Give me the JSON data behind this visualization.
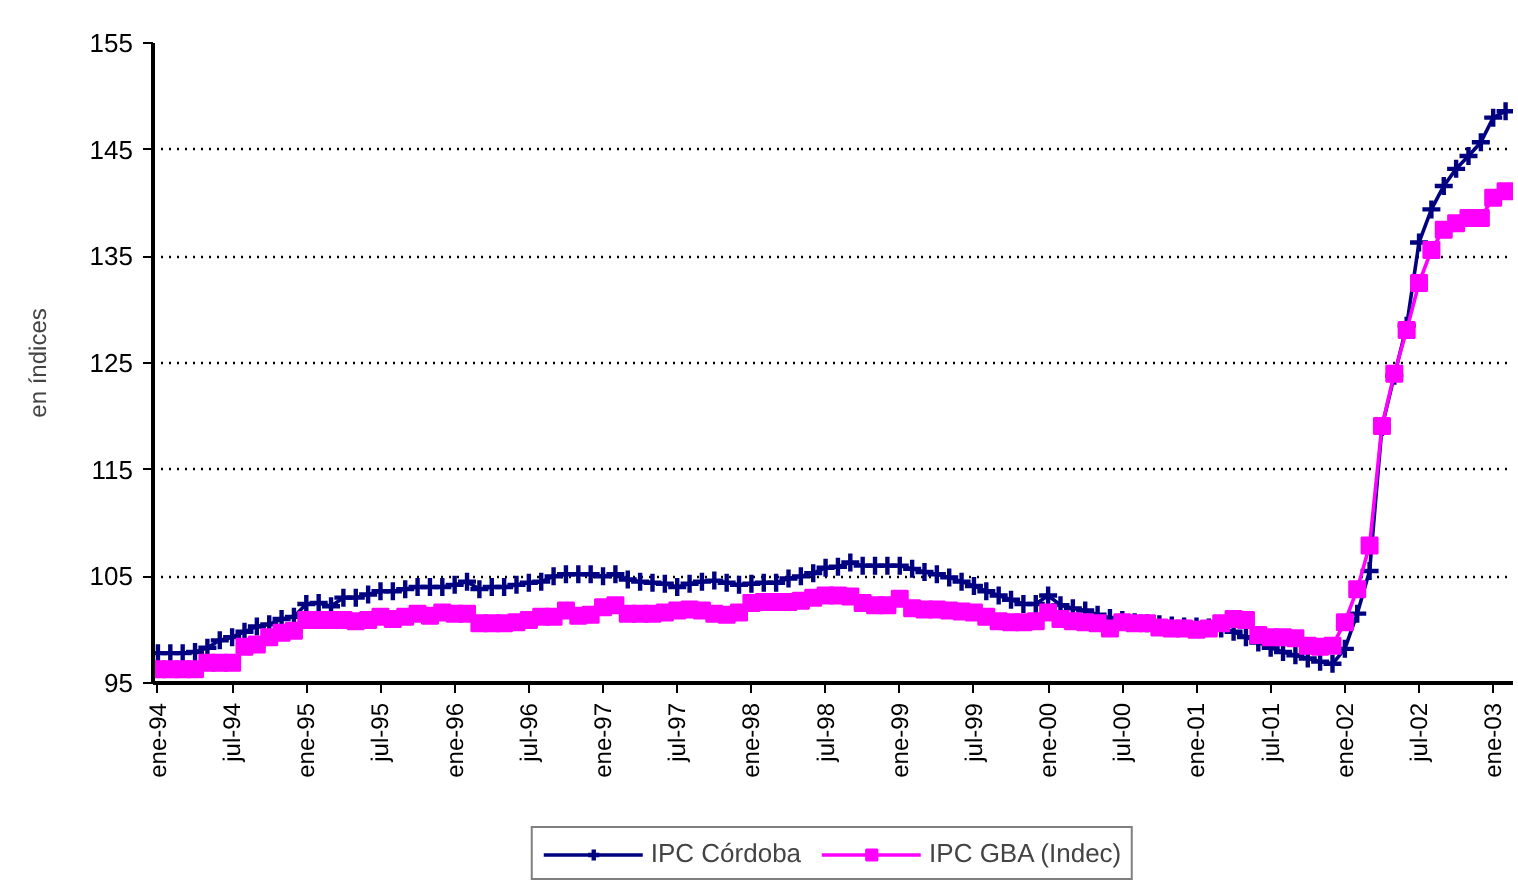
{
  "chart_data": {
    "type": "line",
    "ylabel": "en índices",
    "categories": [
      "ene-94",
      null,
      null,
      null,
      null,
      null,
      "jul-94",
      null,
      null,
      null,
      null,
      null,
      "ene-95",
      null,
      null,
      null,
      null,
      null,
      "jul-95",
      null,
      null,
      null,
      null,
      null,
      "ene-96",
      null,
      null,
      null,
      null,
      null,
      "jul-96",
      null,
      null,
      null,
      null,
      null,
      "ene-97",
      null,
      null,
      null,
      null,
      null,
      "jul-97",
      null,
      null,
      null,
      null,
      null,
      "ene-98",
      null,
      null,
      null,
      null,
      null,
      "jul-98",
      null,
      null,
      null,
      null,
      null,
      "ene-99",
      null,
      null,
      null,
      null,
      null,
      "jul-99",
      null,
      null,
      null,
      null,
      null,
      "ene-00",
      null,
      null,
      null,
      null,
      null,
      "jul-00",
      null,
      null,
      null,
      null,
      null,
      "ene-01",
      null,
      null,
      null,
      null,
      null,
      "jul-01",
      null,
      null,
      null,
      null,
      null,
      "ene-02",
      null,
      null,
      null,
      null,
      null,
      "jul-02",
      null,
      null,
      null,
      null,
      null,
      "ene-03",
      null
    ],
    "series": [
      {
        "name": "IPC Córdoba",
        "color": "#000080",
        "marker": "cross",
        "values": [
          97.8,
          97.8,
          97.8,
          97.9,
          98.3,
          99.0,
          99.3,
          99.8,
          100.3,
          100.5,
          101.0,
          101.2,
          102.4,
          102.5,
          102.2,
          103.0,
          103.0,
          103.3,
          103.6,
          103.6,
          103.8,
          104.0,
          104.0,
          104.0,
          104.2,
          104.5,
          103.8,
          104.0,
          104.0,
          104.2,
          104.4,
          104.5,
          105.0,
          105.2,
          105.2,
          105.2,
          105.0,
          105.2,
          104.7,
          104.5,
          104.4,
          104.3,
          104.0,
          104.3,
          104.5,
          104.6,
          104.4,
          104.2,
          104.3,
          104.4,
          104.4,
          104.8,
          105.0,
          105.3,
          105.8,
          105.9,
          106.3,
          106.0,
          106.0,
          106.0,
          106.0,
          105.7,
          105.4,
          105.2,
          104.9,
          104.5,
          104.1,
          103.6,
          103.2,
          102.8,
          102.4,
          102.4,
          103.2,
          102.3,
          102.0,
          101.8,
          101.4,
          101.1,
          100.9,
          100.7,
          100.6,
          100.5,
          100.4,
          100.3,
          100.3,
          100.2,
          100.1,
          99.8,
          99.3,
          98.8,
          98.3,
          97.9,
          97.6,
          97.3,
          97.0,
          96.8,
          98.2,
          101.5,
          105.5,
          119.0,
          123.8,
          128.5,
          136.3,
          139.4,
          141.6,
          143.2,
          144.4,
          145.7,
          148.0,
          148.6
        ]
      },
      {
        "name": "IPC GBA (Indec)",
        "color": "#ff00ff",
        "marker": "square",
        "values": [
          96.3,
          96.3,
          96.3,
          96.3,
          96.9,
          96.9,
          96.9,
          98.4,
          98.6,
          99.3,
          99.7,
          99.9,
          100.9,
          100.9,
          100.9,
          100.9,
          100.8,
          100.9,
          101.2,
          101.0,
          101.2,
          101.5,
          101.3,
          101.6,
          101.5,
          101.5,
          100.6,
          100.6,
          100.6,
          100.7,
          100.9,
          101.2,
          101.2,
          101.8,
          101.3,
          101.4,
          102.1,
          102.3,
          101.5,
          101.5,
          101.5,
          101.6,
          101.8,
          101.9,
          101.8,
          101.5,
          101.4,
          101.6,
          102.5,
          102.6,
          102.6,
          102.6,
          102.7,
          103.0,
          103.2,
          103.2,
          103.1,
          102.5,
          102.3,
          102.3,
          102.9,
          102.0,
          101.9,
          101.9,
          101.8,
          101.7,
          101.6,
          101.2,
          100.8,
          100.7,
          100.7,
          100.8,
          101.6,
          101.0,
          100.8,
          100.7,
          100.6,
          100.1,
          100.7,
          100.6,
          100.6,
          100.2,
          100.1,
          100.1,
          100.0,
          100.1,
          100.6,
          101.0,
          100.9,
          99.5,
          99.3,
          99.3,
          99.2,
          98.5,
          98.4,
          98.5,
          100.7,
          103.8,
          107.9,
          119.1,
          124.0,
          128.1,
          132.5,
          135.6,
          137.5,
          138.1,
          138.6,
          138.6,
          140.5,
          141.1
        ]
      }
    ],
    "ylim": [
      95,
      155
    ],
    "yticks": [
      95,
      105,
      115,
      125,
      135,
      145,
      155
    ],
    "grid": "y",
    "legend": "bottom",
    "line_style": "solid"
  }
}
